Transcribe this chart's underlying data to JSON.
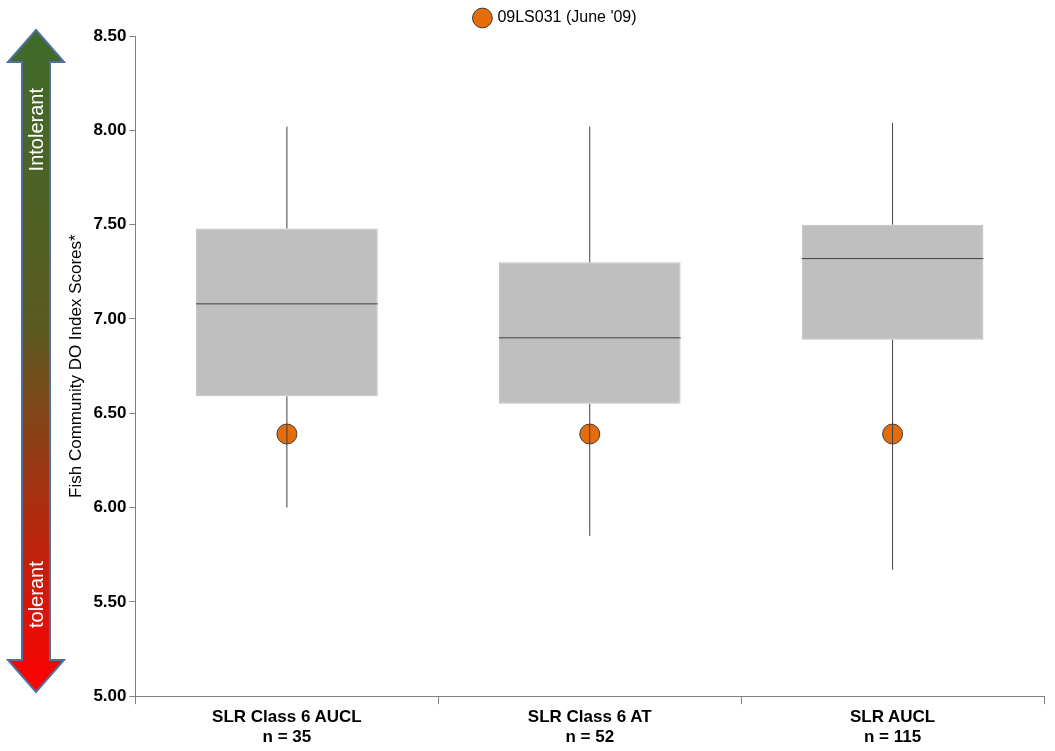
{
  "chart_data": {
    "type": "box",
    "ylabel": "Fish Community DO Index Scores*",
    "categories": [
      "SLR Class 6 AUCL\nn = 35",
      "SLR Class 6 AT\nn = 52",
      "SLR AUCL\nn = 115"
    ],
    "series": [
      {
        "color": "#bfbfbf",
        "boxes": [
          {
            "low": 6.0,
            "q1": 6.59,
            "median": 7.08,
            "q3": 7.48,
            "high": 8.02
          },
          {
            "low": 5.85,
            "q1": 6.55,
            "median": 6.9,
            "q3": 7.3,
            "high": 8.02
          },
          {
            "low": 5.67,
            "q1": 6.89,
            "median": 7.32,
            "q3": 7.5,
            "high": 8.04
          }
        ]
      },
      {
        "type": "scatter",
        "name": "09LS031 (June '09)",
        "color": "#e46c0a",
        "x": [
          "SLR Class 6 AUCL\nn = 35",
          "SLR Class 6 AT\nn = 52",
          "SLR AUCL\nn = 115"
        ],
        "values": [
          6.39,
          6.39,
          6.39
        ]
      }
    ],
    "ylim": [
      5,
      8.5
    ],
    "yticks": [
      {
        "value": 5,
        "label": "5.00"
      },
      {
        "value": 5.5,
        "label": "5.50"
      },
      {
        "value": 6,
        "label": "6.00"
      },
      {
        "value": 6.5,
        "label": "6.50"
      },
      {
        "value": 7,
        "label": "7.00"
      },
      {
        "value": 7.5,
        "label": "7.50"
      },
      {
        "value": 8,
        "label": "8.00"
      },
      {
        "value": 8.5,
        "label": "8.50"
      }
    ],
    "grid": false,
    "legend": "top",
    "marker": "circle",
    "annotations": [
      "Intolerant",
      "tolerant"
    ]
  }
}
